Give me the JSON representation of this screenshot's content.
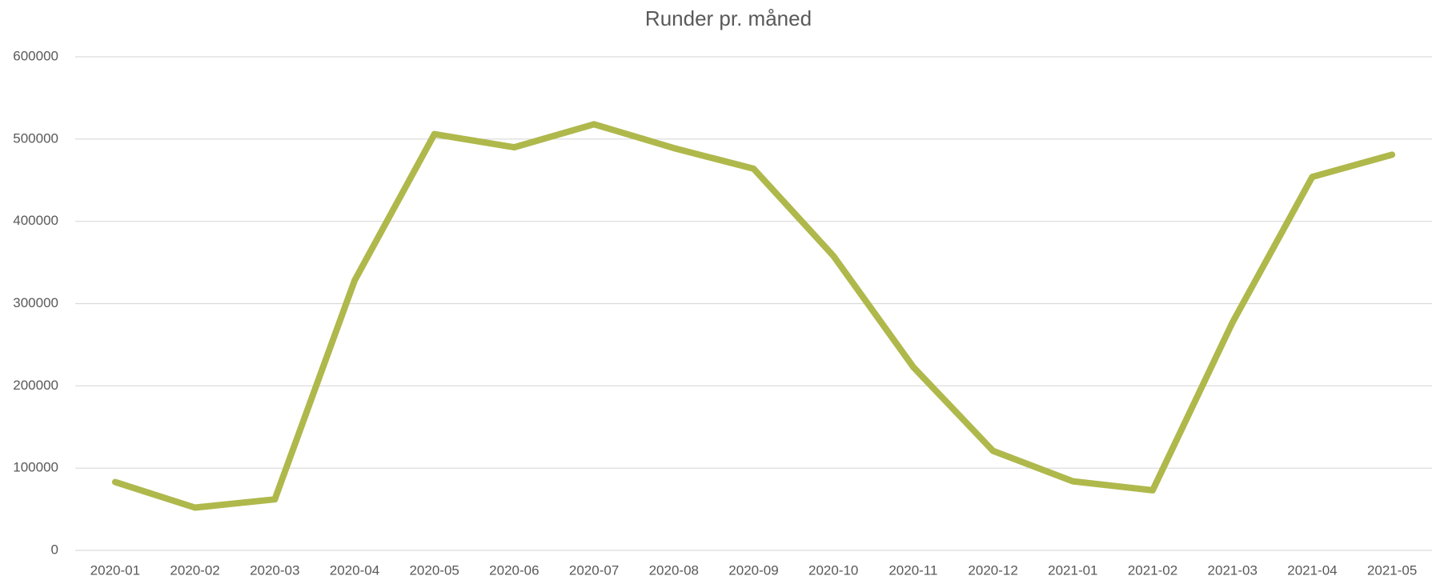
{
  "chart_data": {
    "type": "line",
    "title": "Runder pr. måned",
    "categories": [
      "2020-01",
      "2020-02",
      "2020-03",
      "2020-04",
      "2020-05",
      "2020-06",
      "2020-07",
      "2020-08",
      "2020-09",
      "2020-10",
      "2020-11",
      "2020-12",
      "2021-01",
      "2021-02",
      "2021-03",
      "2021-04",
      "2021-05"
    ],
    "values": [
      83000,
      52000,
      62000,
      328000,
      506000,
      490000,
      518000,
      489000,
      464000,
      358000,
      223000,
      121000,
      84000,
      73000,
      277000,
      454000,
      481000
    ],
    "color": "#afb84b",
    "ylim": [
      0,
      600000
    ],
    "yticks": [
      0,
      100000,
      200000,
      300000,
      400000,
      500000,
      600000
    ],
    "grid": true
  }
}
